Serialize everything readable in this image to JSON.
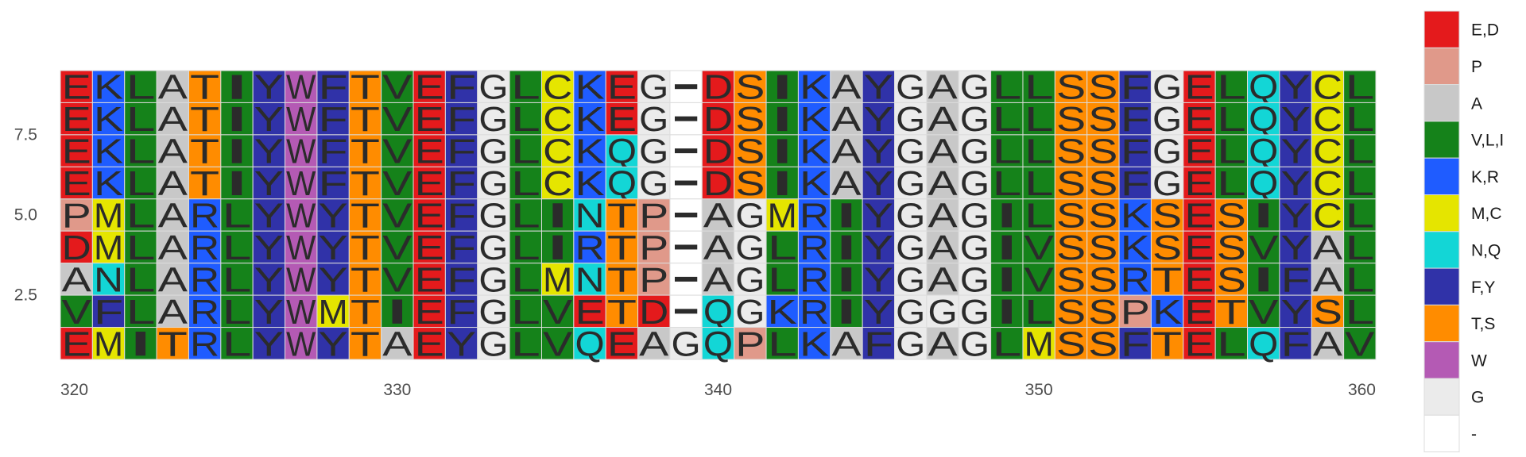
{
  "chart_data": {
    "type": "heatmap",
    "title": "",
    "xlabel": "",
    "ylabel": "",
    "x_start": 320,
    "x_end": 360,
    "xlim": [
      320,
      360
    ],
    "x_ticks": [
      320,
      330,
      340,
      350,
      360
    ],
    "y_ticks": [
      2.5,
      5.0,
      7.5
    ],
    "ylim": [
      1,
      9
    ],
    "sequences": [
      "EKLATIYWFTVEFGLCKEG-DSIKAYGAGLLSSFGELQYCL",
      "EKLATIYWFTVEFGLCKEG-DSIKAYGAGLLSSFGELQYCL",
      "EKLATIYWFTVEFGLCKQG-DSIKAYGAGLLSSFGELQYCL",
      "EKLATIYWFTVEFGLCKQG-DSIKAYGAGLLSSFGELQYCL",
      "PMLARLYWYTVEFGLINTP-AGMRIYGAGILSSKSESIYCL",
      "DMLARLYWYTVEFGLIRTP-AGLRIYGAGIVSSKSESVYAL",
      "ANLARLYWYTVEFGLMNTP-AGLRIYGAGIVSSRTESIFAL",
      "VFLARLYWMTIEFGLVETD-QGKRIYGGGILSSPKETVYSL",
      "EMITRLYWYTAEYGLVQEAGQPLKAFGAGLMSSFTELQFAV"
    ],
    "legend_position": "right",
    "legend": [
      {
        "label": "E,D",
        "residues": "ED",
        "color": "#e41a1c"
      },
      {
        "label": "P",
        "residues": "P",
        "color": "#e0998a"
      },
      {
        "label": "A",
        "residues": "A",
        "color": "#c8c8c8"
      },
      {
        "label": "V,L,I",
        "residues": "VLI",
        "color": "#15821a"
      },
      {
        "label": "K,R",
        "residues": "KR",
        "color": "#1f5cff"
      },
      {
        "label": "M,C",
        "residues": "MC",
        "color": "#e5e500"
      },
      {
        "label": "N,Q",
        "residues": "NQ",
        "color": "#13d6d6"
      },
      {
        "label": "F,Y",
        "residues": "FY",
        "color": "#3032a8"
      },
      {
        "label": "T,S",
        "residues": "TS",
        "color": "#ff8c00"
      },
      {
        "label": "W",
        "residues": "W",
        "color": "#b45ab4"
      },
      {
        "label": "G",
        "residues": "G",
        "color": "#ebebeb"
      },
      {
        "label": "-",
        "residues": "-",
        "color": "#ffffff"
      }
    ]
  }
}
